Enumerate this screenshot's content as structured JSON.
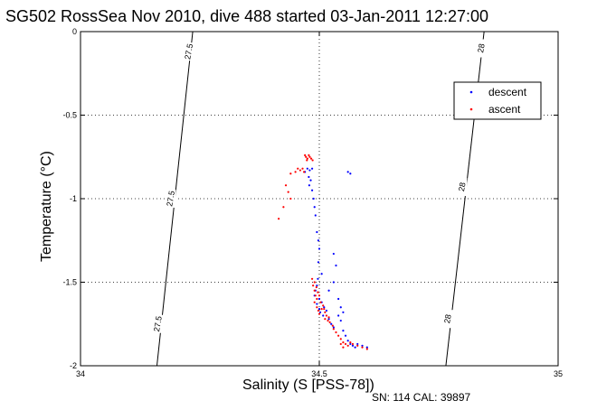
{
  "chart_data": {
    "type": "scatter",
    "title": "SG502 RossSea Nov 2010, dive 488 started 03-Jan-2011 12:27:00",
    "xlabel": "Salinity (S [PSS-78])",
    "ylabel": "Temperature (°C)",
    "xlim": [
      34,
      35
    ],
    "ylim": [
      -2,
      0
    ],
    "x_ticks": [
      "34",
      "34.5",
      "35"
    ],
    "y_ticks": [
      "0",
      "-0.5",
      "-1",
      "-1.5",
      "-2"
    ],
    "grid": "dotted at 34.5 and every 0.5 °C",
    "legend_position": "top-right",
    "footer": "SN: 114  CAL: 39897",
    "colors": {
      "descent": "#0000ff",
      "ascent": "#ff0000",
      "isopycnal": "#000000"
    },
    "isopycnals": [
      {
        "label": "27.5",
        "x_at_ymin": 34.16,
        "x_at_ymax": 34.235,
        "label_positions": [
          [
            34.163,
            -1.75
          ],
          [
            34.19,
            -1.0
          ],
          [
            34.228,
            -0.12
          ]
        ]
      },
      {
        "label": "28",
        "x_at_ymin": 34.765,
        "x_at_ymax": 34.845,
        "label_positions": [
          [
            34.77,
            -1.72
          ],
          [
            34.8,
            -0.93
          ],
          [
            34.84,
            -0.1
          ]
        ]
      }
    ],
    "series": [
      {
        "name": "descent",
        "points": [
          [
            34.475,
            -0.82
          ],
          [
            34.48,
            -0.83
          ],
          [
            34.485,
            -0.82
          ],
          [
            34.47,
            -0.84
          ],
          [
            34.478,
            -0.87
          ],
          [
            34.482,
            -0.89
          ],
          [
            34.479,
            -0.92
          ],
          [
            34.485,
            -0.95
          ],
          [
            34.56,
            -0.84
          ],
          [
            34.565,
            -0.85
          ],
          [
            34.488,
            -1.0
          ],
          [
            34.49,
            -1.05
          ],
          [
            34.492,
            -1.1
          ],
          [
            34.495,
            -1.2
          ],
          [
            34.498,
            -1.25
          ],
          [
            34.5,
            -1.3
          ],
          [
            34.498,
            -1.38
          ],
          [
            34.53,
            -1.33
          ],
          [
            34.535,
            -1.4
          ],
          [
            34.505,
            -1.45
          ],
          [
            34.497,
            -1.48
          ],
          [
            34.495,
            -1.52
          ],
          [
            34.492,
            -1.55
          ],
          [
            34.49,
            -1.58
          ],
          [
            34.5,
            -1.6
          ],
          [
            34.505,
            -1.62
          ],
          [
            34.51,
            -1.65
          ],
          [
            34.515,
            -1.67
          ],
          [
            34.495,
            -1.63
          ],
          [
            34.5,
            -1.66
          ],
          [
            34.502,
            -1.68
          ],
          [
            34.508,
            -1.7
          ],
          [
            34.52,
            -1.72
          ],
          [
            34.525,
            -1.75
          ],
          [
            34.53,
            -1.77
          ],
          [
            34.54,
            -1.7
          ],
          [
            34.545,
            -1.73
          ],
          [
            34.55,
            -1.79
          ],
          [
            34.555,
            -1.82
          ],
          [
            34.56,
            -1.85
          ],
          [
            34.565,
            -1.87
          ],
          [
            34.57,
            -1.88
          ],
          [
            34.575,
            -1.89
          ],
          [
            34.58,
            -1.87
          ],
          [
            34.59,
            -1.88
          ],
          [
            34.6,
            -1.89
          ],
          [
            34.54,
            -1.6
          ],
          [
            34.545,
            -1.65
          ],
          [
            34.55,
            -1.68
          ],
          [
            34.53,
            -1.5
          ],
          [
            34.52,
            -1.55
          ]
        ]
      },
      {
        "name": "ascent",
        "points": [
          [
            34.47,
            -0.74
          ],
          [
            34.472,
            -0.75
          ],
          [
            34.475,
            -0.76
          ],
          [
            34.478,
            -0.74
          ],
          [
            34.48,
            -0.75
          ],
          [
            34.483,
            -0.76
          ],
          [
            34.474,
            -0.77
          ],
          [
            34.486,
            -0.77
          ],
          [
            34.45,
            -0.84
          ],
          [
            34.46,
            -0.83
          ],
          [
            34.44,
            -0.85
          ],
          [
            34.455,
            -0.82
          ],
          [
            34.465,
            -0.82
          ],
          [
            34.468,
            -0.84
          ],
          [
            34.43,
            -0.92
          ],
          [
            34.435,
            -0.96
          ],
          [
            34.425,
            -1.05
          ],
          [
            34.415,
            -1.12
          ],
          [
            34.44,
            -1.0
          ],
          [
            34.485,
            -1.48
          ],
          [
            34.487,
            -1.52
          ],
          [
            34.49,
            -1.55
          ],
          [
            34.492,
            -1.58
          ],
          [
            34.495,
            -1.6
          ],
          [
            34.49,
            -1.62
          ],
          [
            34.495,
            -1.65
          ],
          [
            34.498,
            -1.67
          ],
          [
            34.5,
            -1.69
          ],
          [
            34.503,
            -1.62
          ],
          [
            34.508,
            -1.64
          ],
          [
            34.51,
            -1.66
          ],
          [
            34.512,
            -1.68
          ],
          [
            34.515,
            -1.7
          ],
          [
            34.52,
            -1.71
          ],
          [
            34.518,
            -1.73
          ],
          [
            34.522,
            -1.74
          ],
          [
            34.528,
            -1.76
          ],
          [
            34.53,
            -1.78
          ],
          [
            34.535,
            -1.8
          ],
          [
            34.54,
            -1.82
          ],
          [
            34.545,
            -1.84
          ],
          [
            34.55,
            -1.86
          ],
          [
            34.555,
            -1.87
          ],
          [
            34.56,
            -1.88
          ],
          [
            34.565,
            -1.86
          ],
          [
            34.57,
            -1.87
          ],
          [
            34.58,
            -1.88
          ],
          [
            34.59,
            -1.89
          ],
          [
            34.6,
            -1.9
          ],
          [
            34.55,
            -1.89
          ],
          [
            34.545,
            -1.87
          ],
          [
            34.497,
            -1.56
          ],
          [
            34.5,
            -1.58
          ],
          [
            34.49,
            -1.5
          ],
          [
            34.494,
            -1.53
          ],
          [
            34.505,
            -1.66
          ],
          [
            34.512,
            -1.72
          ]
        ]
      }
    ]
  }
}
